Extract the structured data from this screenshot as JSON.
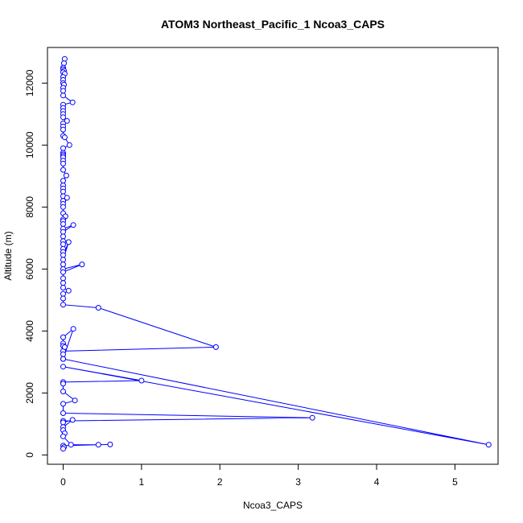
{
  "chart_data": {
    "type": "line",
    "title": "ATOM3 Northeast_Pacific_1 Ncoa3_CAPS",
    "xlabel": "Ncoa3_CAPS",
    "ylabel": "Altitude (m)",
    "xlim": [
      -0.2,
      5.55
    ],
    "ylim": [
      -300,
      13150
    ],
    "x_ticks": [
      0,
      1,
      2,
      3,
      4,
      5
    ],
    "y_ticks": [
      0,
      2000,
      4000,
      6000,
      8000,
      10000,
      12000
    ],
    "grid": false,
    "legend": "none",
    "series_color": "#0000ff",
    "x": [
      0.02,
      0.01,
      0.0,
      0.0,
      0.01,
      0.0,
      0.02,
      0.0,
      0.0,
      0.0,
      0.01,
      0.0,
      0.0,
      0.0,
      0.12,
      0.0,
      0.0,
      0.0,
      0.0,
      0.0,
      0.05,
      0.0,
      0.0,
      0.0,
      0.0,
      0.02,
      0.08,
      0.0,
      0.0,
      0.0,
      0.0,
      0.0,
      0.0,
      0.0,
      0.0,
      0.04,
      0.0,
      0.0,
      0.0,
      0.0,
      0.0,
      0.0,
      0.0,
      0.05,
      0.0,
      0.0,
      0.03,
      0.0,
      0.0,
      0.0,
      0.0,
      0.13,
      0.0,
      0.0,
      0.0,
      0.0,
      0.0,
      0.0,
      0.0,
      0.07,
      0.0,
      0.0,
      0.0,
      0.24,
      0.0,
      0.0,
      0.0,
      0.0,
      0.07,
      0.0,
      0.0,
      0.0,
      0.45,
      1.95,
      0.0,
      0.0,
      0.0,
      0.13,
      0.0,
      0.0,
      0.0,
      0.02,
      0.0,
      5.43,
      0.0,
      1.0,
      0.0,
      0.0,
      0.0,
      0.15,
      0.0,
      0.0,
      3.18,
      0.0,
      0.0,
      0.12,
      0.0,
      0.0,
      0.02,
      0.0,
      0.1,
      0.45,
      0.6,
      0.0,
      0.01,
      0.0
    ],
    "y": [
      12780,
      12640,
      12500,
      12450,
      12400,
      12350,
      12300,
      12200,
      12100,
      12000,
      11950,
      11850,
      11750,
      11600,
      11380,
      11300,
      11200,
      11100,
      11000,
      10900,
      10780,
      10700,
      10600,
      10500,
      10300,
      10250,
      10000,
      9900,
      9750,
      9700,
      9650,
      9600,
      9500,
      9400,
      9200,
      9020,
      8850,
      8700,
      8600,
      8500,
      8350,
      8200,
      8100,
      8300,
      8000,
      7800,
      7700,
      7600,
      7550,
      7450,
      7300,
      7420,
      7200,
      7050,
      6900,
      6800,
      6650,
      6550,
      6450,
      6870,
      6300,
      6150,
      6000,
      6150,
      5900,
      5700,
      5550,
      5400,
      5300,
      5200,
      5050,
      4850,
      4750,
      3480,
      3350,
      3250,
      3100,
      4070,
      3800,
      3600,
      3520,
      3480,
      3100,
      330,
      2850,
      2400,
      2350,
      2300,
      2050,
      1760,
      1650,
      1350,
      1200,
      1100,
      1050,
      1130,
      900,
      800,
      700,
      600,
      330,
      330,
      340,
      300,
      250,
      200
    ]
  }
}
